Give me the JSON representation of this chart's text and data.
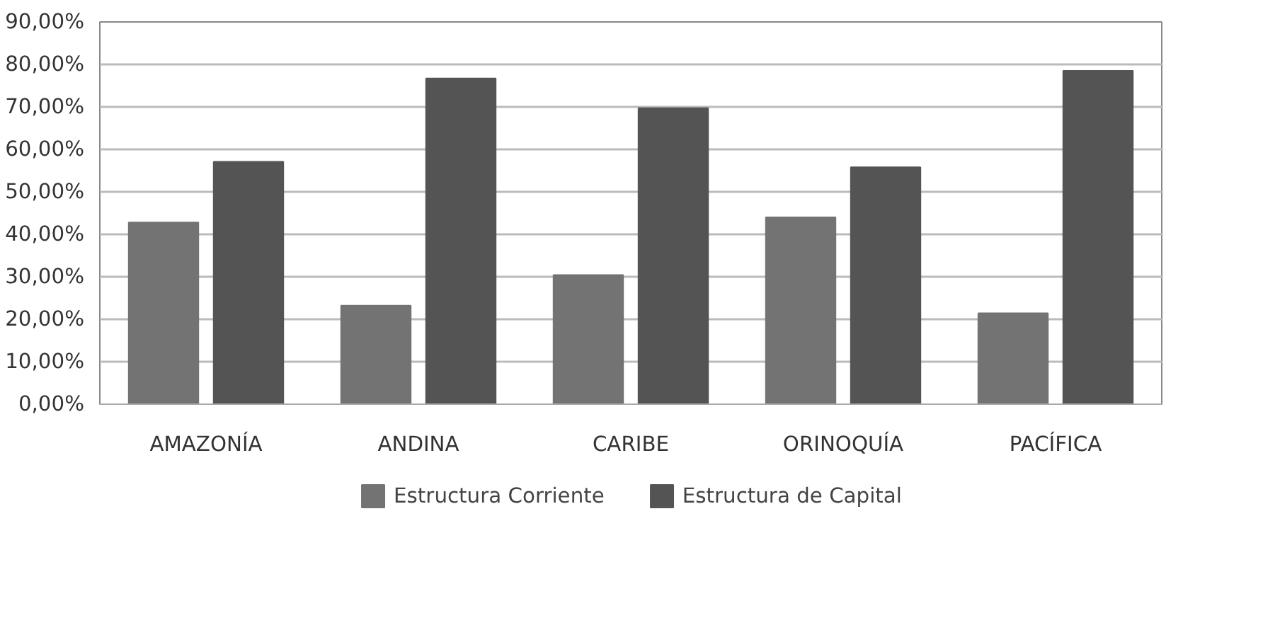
{
  "chart_data": {
    "type": "bar",
    "categories": [
      "AMAZONÍA",
      "ANDINA",
      "CARIBE",
      "ORINOQUÍA",
      "PACÍFICA"
    ],
    "series": [
      {
        "name": "Estructura Corriente",
        "color": "#737373",
        "values": [
          42.8,
          23.2,
          30.4,
          44.0,
          21.4
        ]
      },
      {
        "name": "Estructura de Capital",
        "color": "#545454",
        "values": [
          57.1,
          76.7,
          69.7,
          55.8,
          78.5
        ]
      }
    ],
    "ylim": [
      0,
      90
    ],
    "yticks": [
      {
        "value": 0,
        "label": "0,00%"
      },
      {
        "value": 10,
        "label": "10,00%"
      },
      {
        "value": 20,
        "label": "20,00%"
      },
      {
        "value": 30,
        "label": "30,00%"
      },
      {
        "value": 40,
        "label": "40,00%"
      },
      {
        "value": 50,
        "label": "50,00%"
      },
      {
        "value": 60,
        "label": "60,00%"
      },
      {
        "value": 70,
        "label": "70,00%"
      },
      {
        "value": 80,
        "label": "80,00%"
      },
      {
        "value": 90,
        "label": "90,00%"
      }
    ],
    "grid": "y",
    "legend": "bottom"
  }
}
